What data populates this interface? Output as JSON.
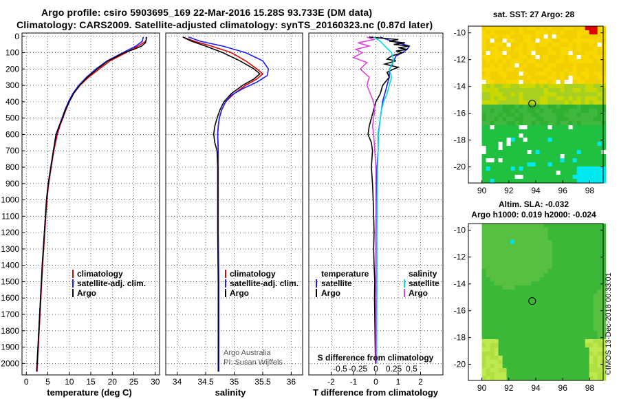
{
  "header": {
    "title_line1": "Argo profile: csiro 5903695_169 22-Mar-2016 15.28S 93.733E (DM data)",
    "title_line2": "Climatology: CARS2009. Satellite-adjusted climatology: synTS_20160323.nc (0.87d later)"
  },
  "credit": "©IMOS 13-Dec-2018 00:33:01",
  "colors": {
    "argo": "#000000",
    "climatology": "#e00000",
    "satellite": "#1a1aff",
    "s_satellite": "#00e0e8",
    "s_argo": "#e040e0"
  },
  "chart_data": [
    {
      "type": "line",
      "name": "temperature-profile",
      "xlabel": "temperature (deg C)",
      "ylabel": "",
      "xlim": [
        -1,
        31
      ],
      "ylim": [
        2070,
        -20
      ],
      "xticks": [
        "0",
        "5",
        "10",
        "15",
        "20",
        "25",
        "30"
      ],
      "xtick_values": [
        0,
        5,
        10,
        15,
        20,
        25,
        30
      ],
      "yticks": [
        "0",
        "100",
        "200",
        "300",
        "400",
        "500",
        "600",
        "700",
        "800",
        "900",
        "1000",
        "1100",
        "1200",
        "1300",
        "1400",
        "1500",
        "1600",
        "1700",
        "1800",
        "1900",
        "2000"
      ],
      "ytick_values": [
        0,
        100,
        200,
        300,
        400,
        500,
        600,
        700,
        800,
        900,
        1000,
        1100,
        1200,
        1300,
        1400,
        1500,
        1600,
        1700,
        1800,
        1900,
        2000
      ],
      "legend": [
        "climatology",
        "satellite-adj. clim.",
        "Argo"
      ],
      "series": [
        {
          "name": "climatology",
          "color": "#e00000",
          "depth": [
            5,
            30,
            60,
            100,
            150,
            200,
            250,
            300,
            350,
            400,
            450,
            500,
            550,
            600,
            700,
            800,
            900,
            1000,
            1200,
            1400,
            1600,
            1800,
            2000,
            2050
          ],
          "values": [
            28.0,
            27.8,
            26.0,
            23.2,
            19.5,
            17.0,
            14.5,
            12.5,
            11.0,
            10.0,
            9.2,
            8.5,
            7.8,
            7.2,
            6.4,
            5.8,
            5.2,
            4.8,
            4.3,
            3.8,
            3.4,
            3.0,
            2.6,
            2.5
          ]
        },
        {
          "name": "satellite-adj. clim.",
          "color": "#1a1aff",
          "depth": [
            5,
            30,
            60,
            100,
            150,
            200,
            250,
            300,
            350,
            400,
            450,
            500,
            550,
            600,
            700,
            800,
            900,
            1000,
            1200,
            1400,
            1600,
            1800,
            2000,
            2050
          ],
          "values": [
            27.2,
            27.0,
            25.5,
            22.5,
            18.8,
            16.2,
            14.0,
            12.2,
            10.8,
            9.8,
            9.0,
            8.3,
            7.6,
            7.0,
            6.3,
            5.7,
            5.1,
            4.7,
            4.2,
            3.7,
            3.3,
            2.9,
            2.5,
            2.4
          ]
        },
        {
          "name": "Argo",
          "color": "#000000",
          "depth": [
            5,
            20,
            40,
            60,
            80,
            100,
            150,
            200,
            250,
            300,
            350,
            400,
            450,
            500,
            550,
            600,
            700,
            800,
            900,
            1000,
            1200,
            1400,
            1600,
            1800,
            2000,
            2050
          ],
          "values": [
            27.9,
            27.9,
            27.7,
            26.8,
            25.0,
            22.8,
            19.0,
            16.5,
            14.2,
            12.4,
            11.0,
            10.0,
            9.1,
            8.4,
            7.6,
            6.9,
            6.3,
            5.7,
            5.1,
            4.7,
            4.2,
            3.7,
            3.3,
            2.9,
            2.5,
            2.4
          ]
        }
      ]
    },
    {
      "type": "line",
      "name": "salinity-profile",
      "xlabel": "salinity",
      "xlim": [
        33.8,
        36.2
      ],
      "ylim": [
        2070,
        -20
      ],
      "xticks": [
        "34",
        "34.5",
        "35",
        "35.5",
        "36"
      ],
      "xtick_values": [
        34,
        34.5,
        35,
        35.5,
        36
      ],
      "legend": [
        "climatology",
        "satellite-adj. clim.",
        "Argo"
      ],
      "annotation": [
        "Argo Australia",
        "PI: Susan Wijffels"
      ],
      "series": [
        {
          "name": "climatology",
          "color": "#e00000",
          "depth": [
            5,
            30,
            60,
            100,
            150,
            200,
            230,
            260,
            300,
            350,
            400,
            450,
            500,
            550,
            600,
            700,
            800,
            1000,
            1200,
            1500,
            1800,
            2000,
            2050
          ],
          "values": [
            34.1,
            34.3,
            34.6,
            34.95,
            35.2,
            35.4,
            35.5,
            35.4,
            35.2,
            35.0,
            34.85,
            34.78,
            34.74,
            34.72,
            34.71,
            34.72,
            34.72,
            34.72,
            34.72,
            34.72,
            34.72,
            34.72,
            34.72
          ]
        },
        {
          "name": "satellite-adj. clim.",
          "color": "#1a1aff",
          "depth": [
            5,
            30,
            60,
            100,
            150,
            200,
            240,
            280,
            320,
            360,
            400,
            450,
            500,
            550,
            600,
            700,
            800,
            1000,
            1200,
            1500,
            1800,
            2000,
            2050
          ],
          "values": [
            34.2,
            34.4,
            34.8,
            35.2,
            35.5,
            35.6,
            35.58,
            35.4,
            35.15,
            34.95,
            34.85,
            34.78,
            34.74,
            34.72,
            34.71,
            34.72,
            34.72,
            34.72,
            34.72,
            34.73,
            34.73,
            34.73,
            34.73
          ]
        },
        {
          "name": "Argo",
          "color": "#000000",
          "depth": [
            5,
            30,
            60,
            100,
            150,
            200,
            230,
            260,
            300,
            350,
            400,
            450,
            500,
            550,
            600,
            650,
            700,
            800,
            1000,
            1200,
            1500,
            1800,
            2000,
            2050
          ],
          "values": [
            34.1,
            34.25,
            34.5,
            34.8,
            35.1,
            35.35,
            35.45,
            35.35,
            35.15,
            34.95,
            34.82,
            34.75,
            34.7,
            34.66,
            34.64,
            34.66,
            34.7,
            34.71,
            34.71,
            34.71,
            34.72,
            34.72,
            34.72,
            34.72
          ]
        }
      ]
    },
    {
      "type": "line",
      "name": "difference-profile",
      "xlabel": "T difference from climatology",
      "xlabel2": "S difference from climatology",
      "xlim": [
        -3,
        3
      ],
      "ylim": [
        2070,
        -20
      ],
      "xticks": [
        "-2",
        "-1",
        "0",
        "1",
        "2"
      ],
      "xtick_values": [
        -2,
        -1,
        0,
        1,
        2
      ],
      "xticks2": [
        "-0.5",
        "-0.25",
        "0",
        "0.25",
        "0.5"
      ],
      "xtick2_values": [
        -1.6,
        -0.8,
        0,
        0.8,
        1.6
      ],
      "legend_left_title": "temperature",
      "legend_right_title": "salinity",
      "legend_left": [
        "satellite",
        "Argo"
      ],
      "legend_right": [
        "satellite",
        "Argo"
      ],
      "series": [
        {
          "name": "T satellite",
          "color": "#1a1aff",
          "depth": [
            5,
            20,
            40,
            60,
            80,
            100,
            120,
            150,
            180,
            200,
            250,
            300,
            350,
            400,
            500,
            600,
            700,
            800,
            1000,
            1200,
            1500,
            1800,
            2000
          ],
          "values": [
            0.2,
            0.5,
            1.0,
            1.5,
            1.4,
            1.2,
            0.9,
            0.8,
            0.7,
            0.6,
            0.6,
            0.5,
            0.4,
            0.3,
            0.2,
            0.1,
            0.1,
            0.05,
            0.02,
            0.0,
            0.0,
            0.0,
            0.0
          ]
        },
        {
          "name": "T Argo",
          "color": "#000000",
          "depth": [
            5,
            20,
            30,
            40,
            50,
            60,
            70,
            80,
            90,
            100,
            120,
            140,
            150,
            170,
            190,
            200,
            220,
            250,
            300,
            350,
            400,
            450,
            500,
            550,
            600,
            650,
            700,
            800,
            900,
            1000,
            1100,
            1200,
            1300,
            1400,
            1500,
            1600,
            1700,
            1800,
            1900,
            2000
          ],
          "values": [
            -0.3,
            1.0,
            0.6,
            1.3,
            0.8,
            1.5,
            1.0,
            1.4,
            0.9,
            1.2,
            0.7,
            0.5,
            0.9,
            0.4,
            1.0,
            0.8,
            0.5,
            0.6,
            0.3,
            0.2,
            0.0,
            -0.1,
            -0.2,
            -0.3,
            -0.35,
            -0.2,
            -0.15,
            -0.2,
            -0.15,
            -0.12,
            -0.1,
            -0.08,
            -0.1,
            -0.08,
            -0.05,
            -0.06,
            -0.05,
            -0.04,
            -0.03,
            -0.02
          ]
        },
        {
          "name": "S satellite",
          "color": "#00e0e8",
          "depth": [
            5,
            30,
            60,
            100,
            150,
            200,
            250,
            300,
            350,
            400,
            450,
            500,
            600,
            700,
            800,
            1000,
            1200,
            1500,
            1800,
            2000
          ],
          "values": [
            -0.1,
            0.2,
            0.4,
            0.7,
            0.8,
            0.6,
            0.7,
            0.6,
            0.5,
            0.35,
            0.25,
            0.2,
            0.12,
            0.1,
            0.08,
            0.06,
            0.05,
            0.05,
            0.04,
            0.04
          ]
        },
        {
          "name": "S Argo",
          "color": "#e040e0",
          "depth": [
            5,
            20,
            40,
            60,
            80,
            100,
            130,
            160,
            200,
            250,
            300,
            350,
            400,
            450,
            500,
            550,
            600,
            700,
            800,
            1000,
            1200,
            1500,
            1800,
            2000
          ],
          "values": [
            -0.4,
            -0.1,
            -0.8,
            -0.3,
            -0.9,
            -0.6,
            -1.0,
            -0.4,
            -0.7,
            -0.3,
            -0.4,
            -0.25,
            -0.1,
            -0.05,
            -0.1,
            -0.15,
            -0.1,
            -0.05,
            0.0,
            0.0,
            0.0,
            0.0,
            0.0,
            0.0
          ]
        }
      ]
    },
    {
      "type": "heatmap",
      "name": "sst-map",
      "title": "sat. SST: 27 Argo: 28",
      "xlim": [
        89,
        99
      ],
      "ylim": [
        -21.2,
        -9.5
      ],
      "xticks": [
        "90",
        "92",
        "94",
        "96",
        "98"
      ],
      "xtick_values": [
        90,
        92,
        94,
        96,
        98
      ],
      "yticks": [
        "-10",
        "-12",
        "-14",
        "-16",
        "-18",
        "-20"
      ],
      "ytick_values": [
        -10,
        -12,
        -14,
        -16,
        -18,
        -20
      ],
      "argo_position": {
        "lon": 93.733,
        "lat": -15.28
      }
    },
    {
      "type": "heatmap",
      "name": "sla-map",
      "title": "Altim. SLA: -0.032",
      "subtitle": "Argo h1000: 0.019 h2000: -0.024",
      "xlim": [
        89,
        99
      ],
      "ylim": [
        -21.2,
        -9.5
      ],
      "xticks": [
        "90",
        "92",
        "94",
        "96",
        "98"
      ],
      "xtick_values": [
        90,
        92,
        94,
        96,
        98
      ],
      "yticks": [
        "-10",
        "-12",
        "-14",
        "-16",
        "-18",
        "-20"
      ],
      "ytick_values": [
        -10,
        -12,
        -14,
        -16,
        -18,
        -20
      ],
      "argo_position": {
        "lon": 93.733,
        "lat": -15.28
      }
    }
  ]
}
